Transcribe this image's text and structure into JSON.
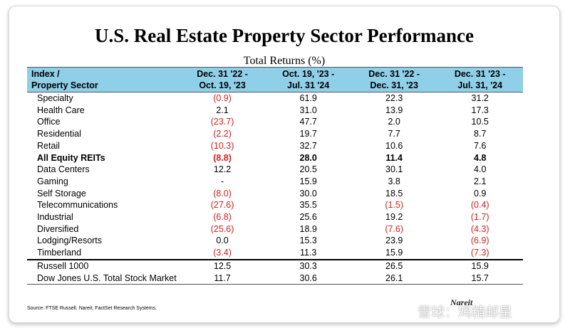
{
  "title": "U.S. Real Estate Property Sector Performance",
  "subtitle": "Total Returns (%)",
  "header": {
    "col0": [
      "Index /",
      "Property Sector"
    ],
    "col1": [
      "Dec. 31 '22 -",
      "Oct. 19, '23"
    ],
    "col2": [
      "Oct. 19, '23 -",
      "Jul. 31 '24"
    ],
    "col3": [
      "Dec. 31 '22 -",
      "Dec. 31, '23"
    ],
    "col4": [
      "Dec. 31 '23 -",
      "Jul. 31, '24"
    ]
  },
  "rows": [
    {
      "label": "Specialty",
      "values": [
        "(0.9)",
        "61.9",
        "22.3",
        "31.2"
      ]
    },
    {
      "label": "Health Care",
      "values": [
        "2.1",
        "31.0",
        "13.9",
        "17.3"
      ]
    },
    {
      "label": "Office",
      "values": [
        "(23.7)",
        "47.7",
        "2.0",
        "10.5"
      ]
    },
    {
      "label": "Residential",
      "values": [
        "(2.2)",
        "19.7",
        "7.7",
        "8.7"
      ]
    },
    {
      "label": "Retail",
      "values": [
        "(10.3)",
        "32.7",
        "10.6",
        "7.6"
      ]
    },
    {
      "label": "All Equity REITs",
      "values": [
        "(8.8)",
        "28.0",
        "11.4",
        "4.8"
      ],
      "bold": true
    },
    {
      "label": "Data Centers",
      "values": [
        "12.2",
        "20.5",
        "30.1",
        "4.0"
      ]
    },
    {
      "label": "Gaming",
      "values": [
        "-",
        "15.9",
        "3.8",
        "2.1"
      ]
    },
    {
      "label": "Self Storage",
      "values": [
        "(8.0)",
        "30.0",
        "18.5",
        "0.9"
      ]
    },
    {
      "label": "Telecommunications",
      "values": [
        "(27.6)",
        "35.5",
        "(1.5)",
        "(0.4)"
      ]
    },
    {
      "label": "Industrial",
      "values": [
        "(6.8)",
        "25.6",
        "19.2",
        "(1.7)"
      ]
    },
    {
      "label": "Diversified",
      "values": [
        "(25.6)",
        "18.9",
        "(7.6)",
        "(4.3)"
      ]
    },
    {
      "label": "Lodging/Resorts",
      "values": [
        "0.0",
        "15.3",
        "23.9",
        "(6.9)"
      ]
    },
    {
      "label": "Timberland",
      "values": [
        "(3.4)",
        "11.3",
        "15.9",
        "(7.3)"
      ]
    }
  ],
  "benchmarks": [
    {
      "label": "Russell 1000",
      "values": [
        "12.5",
        "30.3",
        "26.5",
        "15.9"
      ]
    },
    {
      "label": "Dow Jones U.S. Total Stock Market",
      "values": [
        "11.7",
        "30.6",
        "26.1",
        "15.7"
      ]
    }
  ],
  "source": "Source: FTSE Russell, Nareit, FactSet Research Systems.",
  "brand": "Nareit",
  "watermark": "雪球：鸡精邮星",
  "colors": {
    "header_bg": "#8fd0e8",
    "negative": "#d41f1f"
  }
}
